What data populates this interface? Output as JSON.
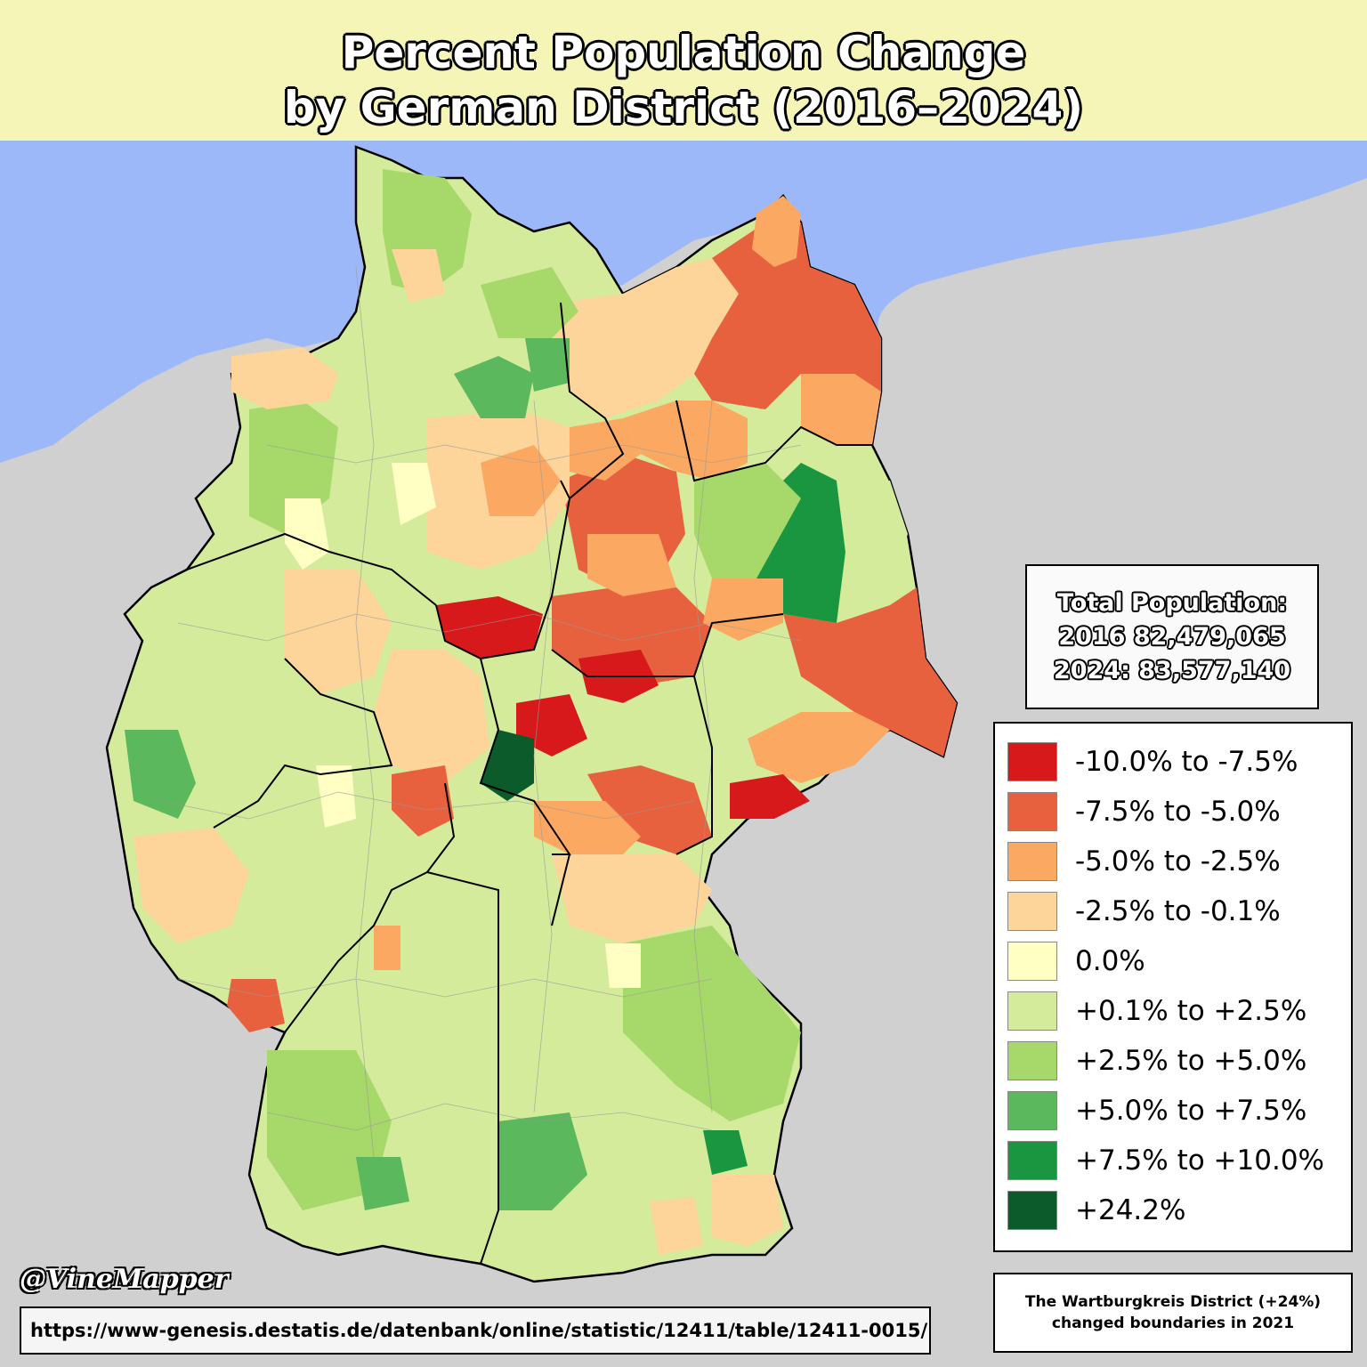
{
  "title": {
    "line1": "Percent Population Change",
    "line2": "by German District (2016–2024)"
  },
  "population": {
    "heading": "Total Population:",
    "line_2016": "2016 82,479,065",
    "line_2024": "2024: 83,577,140"
  },
  "legend": [
    {
      "label": "-10.0% to -7.5%",
      "color": "#d7191c"
    },
    {
      "label": "-7.5% to -5.0%",
      "color": "#e8613f"
    },
    {
      "label": "-5.0% to -2.5%",
      "color": "#fba962"
    },
    {
      "label": "-2.5% to -0.1%",
      "color": "#fdd49a"
    },
    {
      "label": "0.0%",
      "color": "#ffffc4"
    },
    {
      "label": "+0.1% to +2.5%",
      "color": "#d4eb9c"
    },
    {
      "label": "+2.5% to +5.0%",
      "color": "#a6d96a"
    },
    {
      "label": "+5.0% to +7.5%",
      "color": "#5cb85c"
    },
    {
      "label": "+7.5% to +10.0%",
      "color": "#1a9641"
    },
    {
      "label": "+24.2%",
      "color": "#0b5c2a"
    }
  ],
  "note": {
    "line1": "The Wartburgkreis District (+24%)",
    "line2": "changed boundaries in 2021"
  },
  "credit": "@VineMapper",
  "source": "https://www-genesis.destatis.de/datenbank/online/statistic/12411/table/12411-0015/",
  "colors": {
    "sea": "#9db8f9",
    "land_outside": "#d0d0d0",
    "title_banner": "#f5f5b8"
  }
}
